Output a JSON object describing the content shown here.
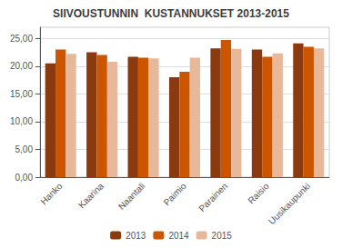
{
  "chart_data": {
    "type": "bar",
    "title": "SIIVOUSTUNNIN  KUSTANNUKSET 2013-2015",
    "categories": [
      "Hanko",
      "Kaarina",
      "Naantali",
      "Paimio",
      "Parainen",
      "Raisio",
      "Uusikaupunki"
    ],
    "series": [
      {
        "name": "2013",
        "color": "#8B3A0F",
        "values": [
          20.5,
          22.5,
          21.7,
          18.0,
          23.2,
          23.0,
          24.1
        ]
      },
      {
        "name": "2014",
        "color": "#CC5500",
        "values": [
          23.0,
          22.0,
          21.5,
          19.0,
          24.7,
          21.7,
          23.5
        ]
      },
      {
        "name": "2015",
        "color": "#E8B89A",
        "values": [
          22.2,
          20.8,
          21.4,
          21.5,
          23.1,
          22.3,
          23.2
        ]
      }
    ],
    "ylim": [
      0,
      27
    ],
    "yticks": [
      {
        "value": 0,
        "label": "0,00"
      },
      {
        "value": 5,
        "label": "5,00"
      },
      {
        "value": 10,
        "label": "10,00"
      },
      {
        "value": 15,
        "label": "15,00"
      },
      {
        "value": 20,
        "label": "20,00"
      },
      {
        "value": 25,
        "label": "25,00"
      }
    ],
    "grid": true,
    "legend": "bottom"
  }
}
